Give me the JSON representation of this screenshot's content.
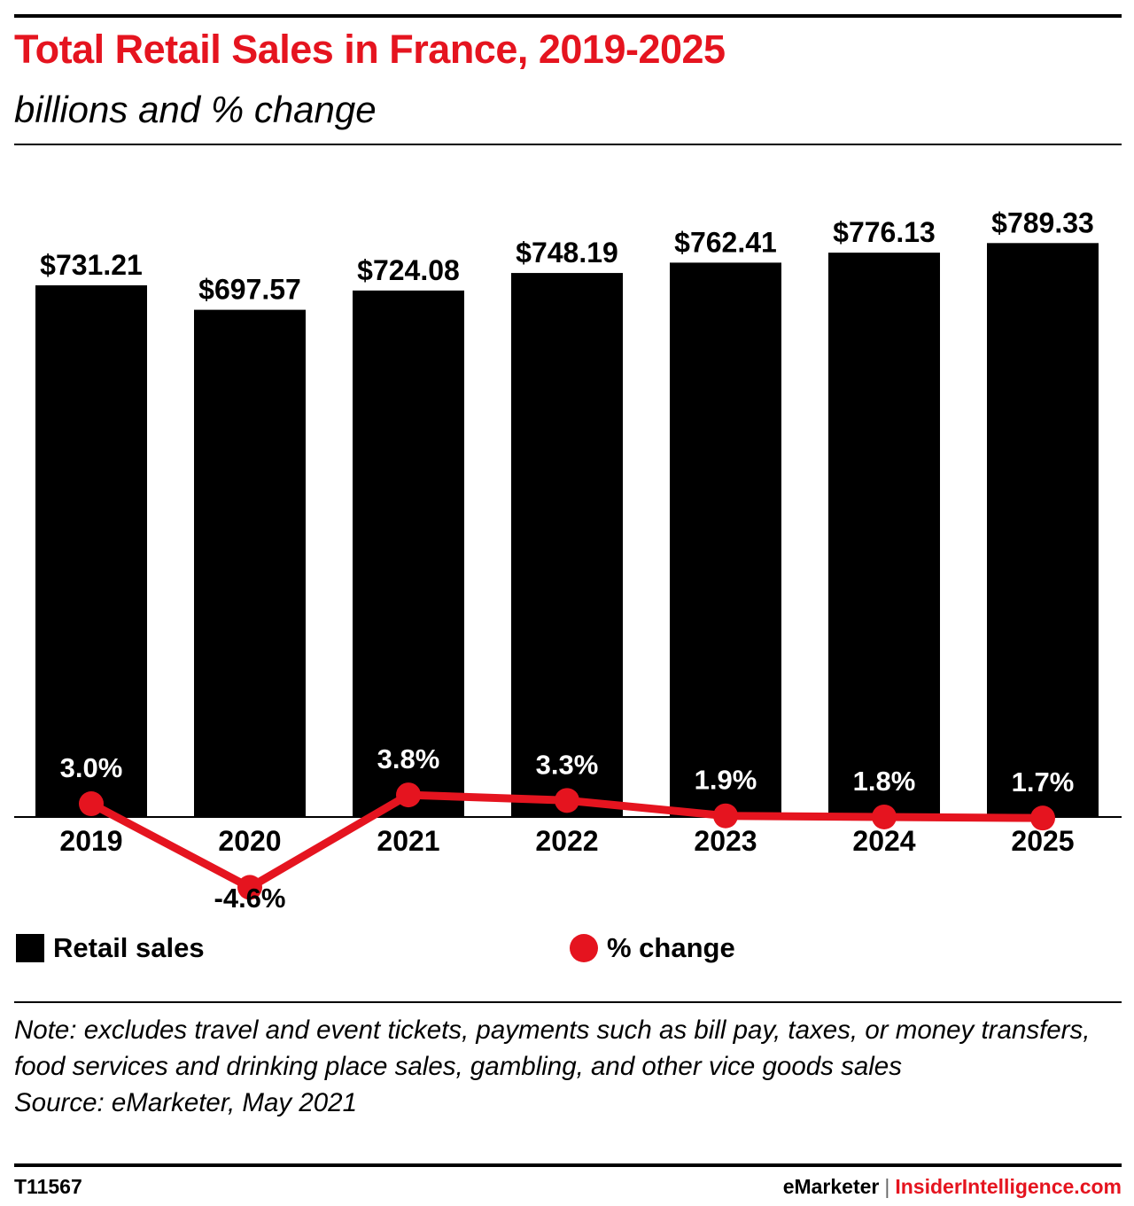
{
  "header": {
    "title": "Total Retail Sales in France, 2019-2025",
    "subtitle": "billions and % change"
  },
  "chart_data": {
    "type": "bar",
    "categories": [
      "2019",
      "2020",
      "2021",
      "2022",
      "2023",
      "2024",
      "2025"
    ],
    "series": [
      {
        "name": "Retail sales",
        "type": "bar",
        "values": [
          731.21,
          697.57,
          724.08,
          748.19,
          762.41,
          776.13,
          789.33
        ],
        "labels": [
          "$731.21",
          "$697.57",
          "$724.08",
          "$748.19",
          "$762.41",
          "$776.13",
          "$789.33"
        ],
        "color": "#000000"
      },
      {
        "name": "% change",
        "type": "line",
        "values": [
          3.0,
          -4.6,
          3.8,
          3.3,
          1.9,
          1.8,
          1.7
        ],
        "labels": [
          "3.0%",
          "-4.6%",
          "3.8%",
          "3.3%",
          "1.9%",
          "1.8%",
          "1.7%"
        ],
        "color": "#e5141f"
      }
    ],
    "ylim": [
      0,
      800
    ],
    "grid": false,
    "legend_position": "bottom"
  },
  "legend": {
    "bars_label": "Retail sales",
    "line_label": "% change"
  },
  "notes": {
    "note": "Note: excludes travel and event tickets, payments such as bill pay, taxes, or money transfers, food services and drinking place sales, gambling, and other vice goods sales",
    "source": "Source: eMarketer, May 2021"
  },
  "footer": {
    "code": "T11567",
    "brand_1": "eMarketer",
    "separator": "|",
    "brand_2": "InsiderIntelligence.com"
  },
  "colors": {
    "accent": "#e5141f",
    "bar": "#000000"
  }
}
